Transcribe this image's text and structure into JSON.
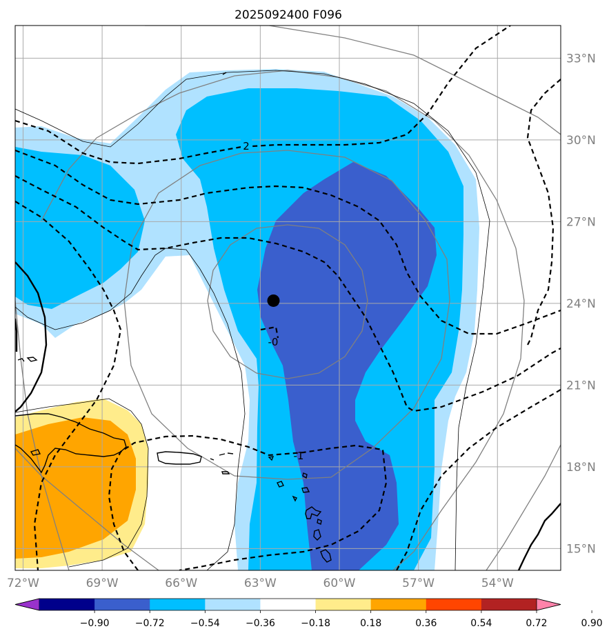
{
  "figure": {
    "title": "2025092400 F096"
  },
  "map": {
    "lon_range": [
      -72.3,
      -51.6
    ],
    "lat_range": [
      14.2,
      34.2
    ],
    "lon_ticks": [
      "72°W",
      "69°W",
      "66°W",
      "63°W",
      "60°W",
      "57°W",
      "54°W"
    ],
    "lat_ticks": [
      "33°N",
      "30°N",
      "27°N",
      "24°N",
      "21°N",
      "18°N",
      "15°N"
    ],
    "gridlines": true,
    "center_marker": {
      "lon": -62.5,
      "lat": 24.1
    },
    "contour_labels": [
      {
        "text": "2",
        "lon": -63.3,
        "lat": 29.7
      },
      {
        "text": "-0",
        "lon": -62.4,
        "lat": 22.5
      },
      {
        "text": "-1",
        "lon": -61.3,
        "lat": 18.4
      }
    ]
  },
  "colorbar": {
    "tick_labels": [
      "−0.90",
      "−0.72",
      "−0.54",
      "−0.36",
      "−0.18",
      "0.18",
      "0.36",
      "0.54",
      "0.72",
      "0.90"
    ],
    "colors": [
      "#9932cc",
      "#00008b",
      "#3a5fcd",
      "#00bfff",
      "#b0e2ff",
      "#ffffff",
      "#ffec8b",
      "#ffa500",
      "#ff4500",
      "#b22222",
      "#ff83aa"
    ],
    "extend": "both"
  }
}
